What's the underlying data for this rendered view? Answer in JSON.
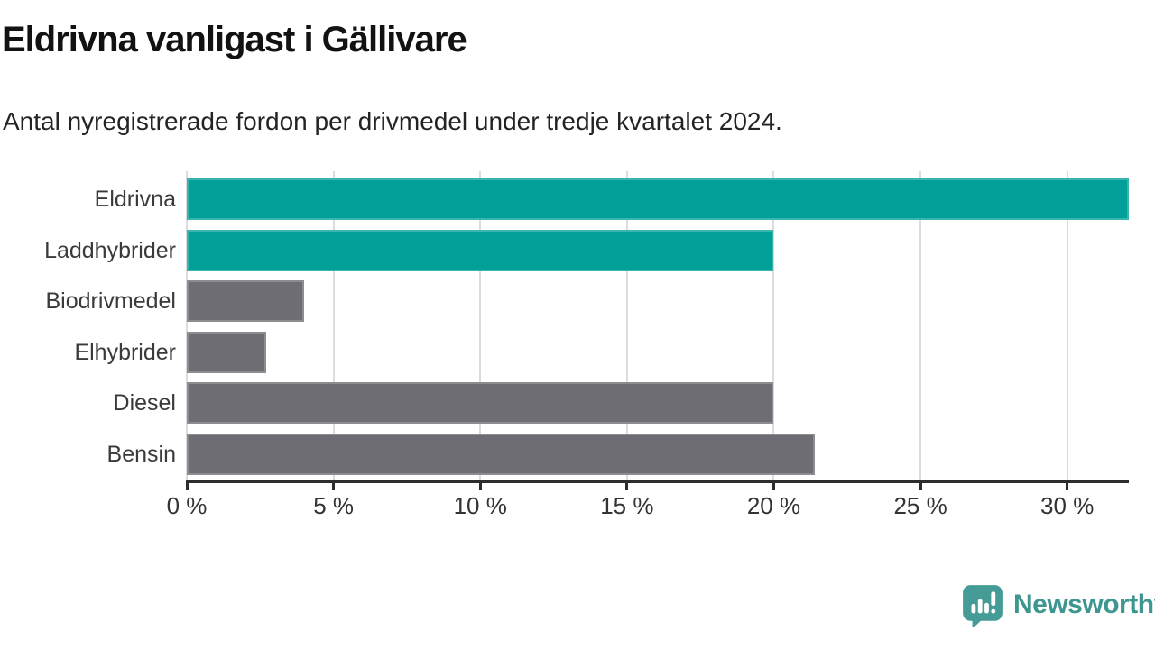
{
  "chart_data": {
    "type": "bar",
    "orientation": "horizontal",
    "title": "Eldrivna vanligast i Gällivare",
    "subtitle": "Antal nyregistrerade fordon per drivmedel under tredje kvartalet 2024.",
    "categories": [
      "Eldrivna",
      "Laddhybrider",
      "Biodrivmedel",
      "Elhybrider",
      "Diesel",
      "Bensin"
    ],
    "values": [
      32.1,
      20,
      4,
      2.7,
      20,
      21.4
    ],
    "bar_colors": [
      "#00a099",
      "#00a099",
      "#6d6d73",
      "#6d6d73",
      "#6d6d73",
      "#6d6d73"
    ],
    "unit": "%",
    "xlabel": "",
    "ylabel": "",
    "xlim": [
      0,
      32.1
    ],
    "x_ticks": [
      0,
      5,
      10,
      15,
      20,
      25,
      30
    ],
    "x_tick_labels": [
      "0 %",
      "5 %",
      "10 %",
      "15 %",
      "20 %",
      "25 %",
      "30 %"
    ],
    "grid": true,
    "legend": "none",
    "highlight_color": "#00a099",
    "default_color": "#6d6d73"
  },
  "branding": {
    "logo_text": "Newsworthy",
    "logo_color": "#3d968f",
    "logo_icon": "newsworthy-speech-bubble-chart-icon"
  }
}
